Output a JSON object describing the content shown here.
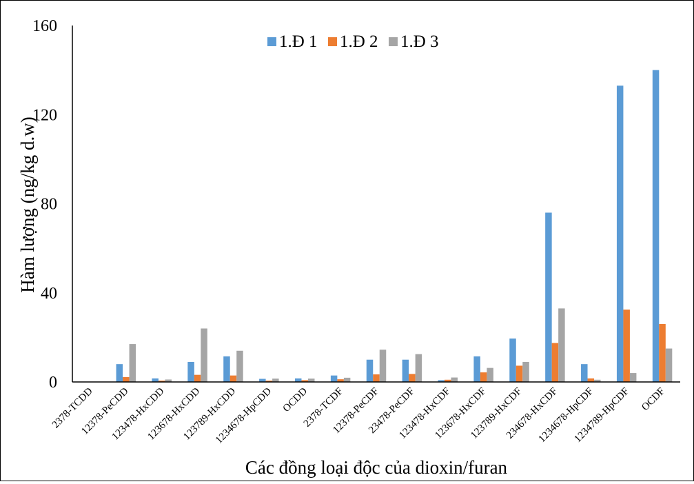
{
  "chart_data": {
    "type": "bar",
    "xlabel": "Các đồng loại độc của dioxin/furan",
    "ylabel": "Hàm lượng (ng/kg d.w)",
    "ylim": [
      0,
      160
    ],
    "yticks": [
      "0",
      "40",
      "80",
      "120",
      "160"
    ],
    "legend_position": "top-center",
    "grid": false,
    "categories": [
      "2378-TCDD",
      "12378-PeCDD",
      "123478-HxCDD",
      "123678-HxCDD",
      "123789-HxCDD",
      "1234678-HpCDD",
      "OCDD",
      "2378-TCDF",
      "12378-PeCDF",
      "23478-PeCDF",
      "123478-HxCDF",
      "123678-HxCDF",
      "123789-HxCDF",
      "234678-HxCDF",
      "1234678-HpCDF",
      "1234789-HpCDF",
      "OCDF"
    ],
    "series": [
      {
        "name": "1.Đ 1",
        "color": "#5B9BD5",
        "values": [
          0,
          8,
          1.6,
          9,
          11.5,
          1.4,
          1.6,
          2.9,
          10,
          10,
          0.8,
          11.5,
          19.5,
          76,
          8,
          133,
          140
        ]
      },
      {
        "name": "1.Đ 2",
        "color": "#ED7D31",
        "values": [
          0,
          2.2,
          0.6,
          3.2,
          2.9,
          0.6,
          0.8,
          1.2,
          3.4,
          3.6,
          1.0,
          4.3,
          7.3,
          17.5,
          1.6,
          32.5,
          26
        ]
      },
      {
        "name": "1.Đ 3",
        "color": "#A5A5A5",
        "values": [
          0,
          17,
          1.1,
          24,
          14,
          1.5,
          1.5,
          1.9,
          14.5,
          12.5,
          2.0,
          6.3,
          9,
          33,
          1.0,
          4,
          15
        ]
      }
    ]
  }
}
